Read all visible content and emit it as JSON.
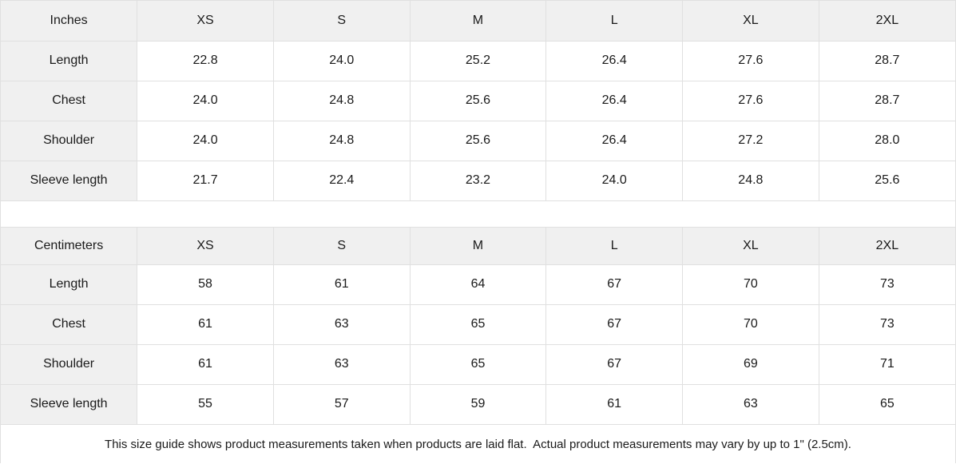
{
  "chart_data": [
    {
      "type": "table",
      "unit_label": "Inches",
      "columns": [
        "XS",
        "S",
        "M",
        "L",
        "XL",
        "2XL"
      ],
      "rows": [
        {
          "label": "Length",
          "values": [
            "22.8",
            "24.0",
            "25.2",
            "26.4",
            "27.6",
            "28.7"
          ]
        },
        {
          "label": "Chest",
          "values": [
            "24.0",
            "24.8",
            "25.6",
            "26.4",
            "27.6",
            "28.7"
          ]
        },
        {
          "label": "Shoulder",
          "values": [
            "24.0",
            "24.8",
            "25.6",
            "26.4",
            "27.2",
            "28.0"
          ]
        },
        {
          "label": "Sleeve length",
          "values": [
            "21.7",
            "22.4",
            "23.2",
            "24.0",
            "24.8",
            "25.6"
          ]
        }
      ]
    },
    {
      "type": "table",
      "unit_label": "Centimeters",
      "columns": [
        "XS",
        "S",
        "M",
        "L",
        "XL",
        "2XL"
      ],
      "rows": [
        {
          "label": "Length",
          "values": [
            "58",
            "61",
            "64",
            "67",
            "70",
            "73"
          ]
        },
        {
          "label": "Chest",
          "values": [
            "61",
            "63",
            "65",
            "67",
            "70",
            "73"
          ]
        },
        {
          "label": "Shoulder",
          "values": [
            "61",
            "63",
            "65",
            "67",
            "69",
            "71"
          ]
        },
        {
          "label": "Sleeve length",
          "values": [
            "55",
            "57",
            "59",
            "61",
            "63",
            "65"
          ]
        }
      ]
    }
  ],
  "footer": {
    "note": "This size guide shows product measurements taken when products are laid flat.  Actual product measurements may vary by up to 1\" (2.5cm)."
  },
  "colors": {
    "header_bg": "#f0f0f0",
    "border": "#e0e0e0",
    "text": "#1a1a1a",
    "background": "#ffffff"
  }
}
